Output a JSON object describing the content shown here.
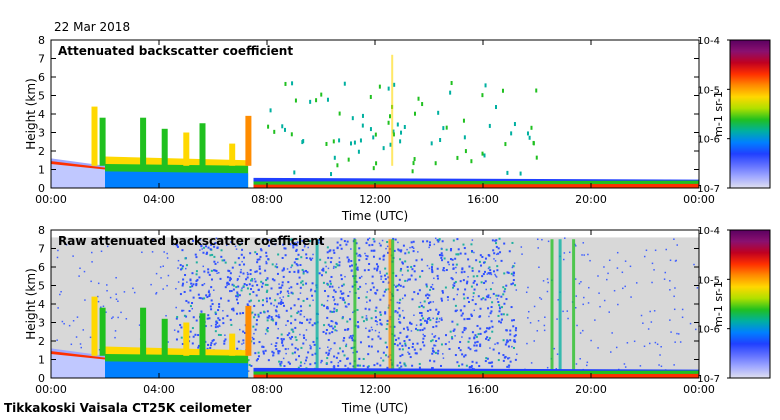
{
  "header": {
    "date": "22 Mar 2018"
  },
  "footer": {
    "instrument": "Tikkakoski Vaisala CT25K ceilometer"
  },
  "colorbar": {
    "top_label": "10-4",
    "tick_labels": [
      "10-4",
      "10-5",
      "10-6",
      "10-7"
    ],
    "unit": "m-1 sr-1",
    "colors": [
      "#5a0060",
      "#8a1070",
      "#c00020",
      "#ff3000",
      "#ff8c00",
      "#ffd800",
      "#b0e000",
      "#20c020",
      "#00b0a0",
      "#0080ff",
      "#2040ff",
      "#6070ff",
      "#a0a8ff",
      "#e0e0f0"
    ]
  },
  "chart_data": [
    {
      "type": "heatmap",
      "title": "Attenuated backscatter coefficient",
      "xlabel": "Time (UTC)",
      "ylabel": "Height (km)",
      "xlim": [
        "00:00",
        "24:00"
      ],
      "ylim": [
        0,
        8
      ],
      "x_ticks": [
        "00:00",
        "04:00",
        "08:00",
        "12:00",
        "16:00",
        "20:00",
        "00:00"
      ],
      "y_ticks": [
        0,
        1,
        2,
        3,
        4,
        5,
        6,
        7,
        8
      ],
      "colorbar_range": [
        "1e-7",
        "1e-4"
      ],
      "boundary_layer_top_km": [
        {
          "time": "00:00",
          "height": 1.4
        },
        {
          "time": "02:00",
          "height": 1.0
        },
        {
          "time": "03:00",
          "height": 0.9
        },
        {
          "time": "05:00",
          "height": 1.6
        },
        {
          "time": "07:00",
          "height": 1.3
        },
        {
          "time": "07:30",
          "height": 0.1
        },
        {
          "time": "12:00",
          "height": 0.3
        },
        {
          "time": "16:00",
          "height": 0.5
        },
        {
          "time": "19:00",
          "height": 0.3
        },
        {
          "time": "24:00",
          "height": 0.4
        }
      ],
      "clutter_background": false
    },
    {
      "type": "heatmap",
      "title": "Raw attenuated backscatter coefficient",
      "xlabel": "Time (UTC)",
      "ylabel": "Height (km)",
      "xlim": [
        "00:00",
        "24:00"
      ],
      "ylim": [
        0,
        8
      ],
      "x_ticks": [
        "00:00",
        "04:00",
        "08:00",
        "12:00",
        "16:00",
        "20:00",
        "00:00"
      ],
      "y_ticks": [
        0,
        1,
        2,
        3,
        4,
        5,
        6,
        7,
        8
      ],
      "colorbar_range": [
        "1e-7",
        "1e-4"
      ],
      "clutter_background": true
    }
  ]
}
